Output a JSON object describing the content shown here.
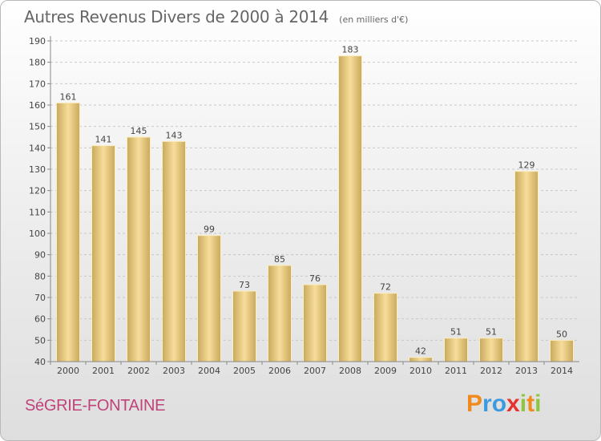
{
  "title": "Autres Revenus Divers de 2000 à 2014",
  "unit_note": "(en milliers d'€)",
  "commune": "SéGRIE-FONTAINE",
  "brand": {
    "letters": [
      "P",
      "r",
      "o",
      "x",
      "i",
      "t",
      "i"
    ],
    "colors": [
      "#f08a1e",
      "#3c9be0",
      "#3c9be0",
      "#e8312f",
      "#8cc63f",
      "#f08a1e",
      "#8cc63f"
    ]
  },
  "colors": {
    "bar_light": "#f7dd9a",
    "bar_dark": "#c9a95c",
    "grid": "#c8c8c8",
    "axis": "#888888"
  },
  "chart_data": {
    "type": "bar",
    "categories": [
      "2000",
      "2001",
      "2002",
      "2003",
      "2004",
      "2005",
      "2006",
      "2007",
      "2008",
      "2009",
      "2010",
      "2011",
      "2012",
      "2013",
      "2014"
    ],
    "values": [
      161,
      141,
      145,
      143,
      99,
      73,
      85,
      76,
      183,
      72,
      42,
      51,
      51,
      129,
      50
    ],
    "ylim": [
      40,
      190
    ],
    "yticks": [
      40,
      50,
      60,
      70,
      80,
      90,
      100,
      110,
      120,
      130,
      140,
      150,
      160,
      170,
      180,
      190
    ],
    "grid": true,
    "data_labels": true
  }
}
